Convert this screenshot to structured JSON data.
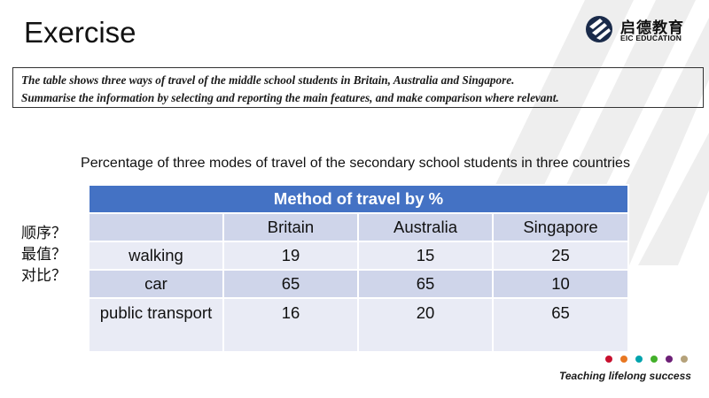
{
  "title": "Exercise",
  "logo": {
    "name_cn": "启德教育",
    "name_en": "EIC EDUCATION",
    "tagline": "Teaching lifelong success",
    "dot_colors": [
      "#c8102e",
      "#e87722",
      "#00a3ad",
      "#43b02a",
      "#6d2077",
      "#b5a27a"
    ]
  },
  "task": {
    "line1": "The table shows three ways of  travel of the middle school students in Britain, Australia and Singapore.",
    "line2": "Summarise the information by selecting and reporting the main features, and make comparison where relevant."
  },
  "caption": "Percentage of three modes of travel of the secondary school students in three countries",
  "side_notes": [
    "顺序？",
    "最值？",
    "对比？"
  ],
  "table": {
    "title": "Method of travel by %",
    "columns": [
      "",
      "Britain",
      "Australia",
      "Singapore"
    ],
    "rows": [
      {
        "label": "walking",
        "values": [
          "19",
          "15",
          "25"
        ]
      },
      {
        "label": "car",
        "values": [
          "65",
          "65",
          "10"
        ]
      },
      {
        "label": "public transport",
        "values": [
          "16",
          "20",
          "65"
        ]
      }
    ]
  },
  "colors": {
    "header_blue": "#4472c4",
    "band_dark": "#cfd5ea",
    "band_light": "#e9ebf5"
  }
}
